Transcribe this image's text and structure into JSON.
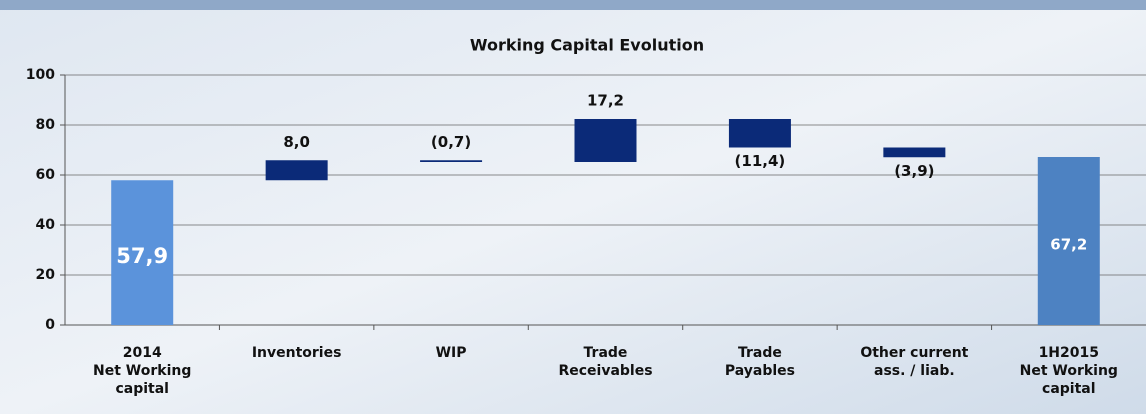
{
  "chart_data": {
    "type": "waterfall",
    "title": "Working Capital Evolution",
    "categories": [
      [
        "2014",
        "Net Working",
        "capital"
      ],
      [
        "Inventories"
      ],
      [
        "WIP"
      ],
      [
        "Trade",
        "Receivables"
      ],
      [
        "Trade",
        "Payables"
      ],
      [
        "Other current",
        "ass. / liab."
      ],
      [
        "1H2015",
        "Net Working",
        "capital"
      ]
    ],
    "values": [
      57.9,
      8.0,
      -0.7,
      17.2,
      -11.4,
      -3.9,
      67.2
    ],
    "value_labels": [
      "57,9",
      "8,0",
      "(0,7)",
      "17,2",
      "(11,4)",
      "(3,9)",
      "67,2"
    ],
    "totals": [
      0,
      6
    ],
    "colors": [
      "#5b93db",
      "#0b2a78",
      "#0b2a78",
      "#0b2a78",
      "#0b2a78",
      "#0b2a78",
      "#4d82c2"
    ],
    "ylim": [
      0,
      100
    ],
    "yticks": [
      0,
      20,
      40,
      60,
      80,
      100
    ],
    "grid": true
  }
}
